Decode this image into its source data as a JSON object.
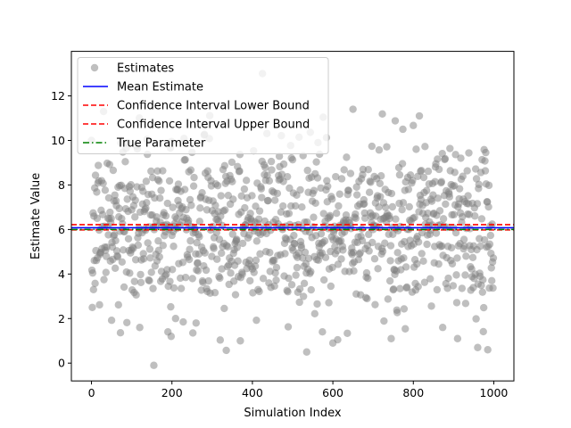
{
  "chart_data": {
    "type": "scatter",
    "xlabel": "Simulation Index",
    "ylabel": "Estimate Value",
    "xlim": [
      -50,
      1050
    ],
    "ylim": [
      -0.8,
      14.0
    ],
    "xticks": [
      0,
      200,
      400,
      600,
      800,
      1000
    ],
    "yticks": [
      0,
      2,
      4,
      6,
      8,
      10,
      12
    ],
    "grid": false,
    "legend_position": "top-left",
    "n_points": 1000,
    "point_color": "#808080",
    "point_alpha": 0.5,
    "series": [
      {
        "name": "Estimates",
        "kind": "scatter",
        "color": "#808080",
        "note_visible_points": [
          {
            "x": 0,
            "y": 10.0
          },
          {
            "x": 2,
            "y": 2.5
          },
          {
            "x": 5,
            "y": 3.3
          },
          {
            "x": 30,
            "y": 11.3
          },
          {
            "x": 60,
            "y": 5.5
          },
          {
            "x": 120,
            "y": 1.6
          },
          {
            "x": 155,
            "y": -0.1
          },
          {
            "x": 190,
            "y": 1.4
          },
          {
            "x": 198,
            "y": 1.2
          },
          {
            "x": 260,
            "y": 1.8
          },
          {
            "x": 370,
            "y": 1.0
          },
          {
            "x": 425,
            "y": 13.0
          },
          {
            "x": 535,
            "y": 0.5
          },
          {
            "x": 600,
            "y": 0.9
          },
          {
            "x": 650,
            "y": 11.4
          },
          {
            "x": 745,
            "y": 1.1
          },
          {
            "x": 815,
            "y": 11.1
          },
          {
            "x": 910,
            "y": 1.1
          },
          {
            "x": 960,
            "y": 0.7
          },
          {
            "x": 985,
            "y": 0.6
          },
          {
            "x": 995,
            "y": 9.8
          },
          {
            "x": 995,
            "y": 3.7
          }
        ]
      },
      {
        "name": "Mean Estimate",
        "kind": "hline",
        "y": 6.08,
        "color": "#0000ff",
        "style": "solid"
      },
      {
        "name": "Confidence Interval Lower Bound",
        "kind": "hline",
        "y": 5.98,
        "color": "#ff0000",
        "style": "dashed"
      },
      {
        "name": "Confidence Interval Upper Bound",
        "kind": "hline",
        "y": 6.22,
        "color": "#ff0000",
        "style": "dashed"
      },
      {
        "name": "True Parameter",
        "kind": "hline",
        "y": 6.0,
        "color": "#008000",
        "style": "dashdot"
      }
    ]
  }
}
